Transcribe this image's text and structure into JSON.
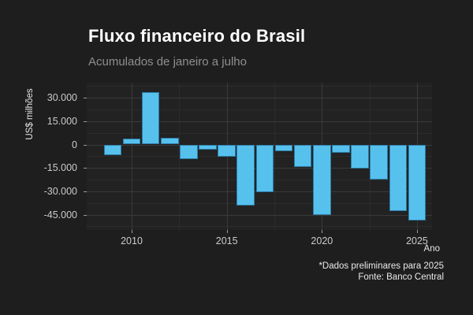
{
  "header": {
    "title": "Fluxo financeiro do Brasil",
    "subtitle": "Acumulados de janeiro a julho"
  },
  "footer": {
    "note": "*Dados preliminares para 2025",
    "source": "Fonte: Banco Central"
  },
  "chart_data": {
    "type": "bar",
    "title": "Fluxo financeiro do Brasil",
    "subtitle": "Acumulados de janeiro a julho",
    "xlabel": "Ano",
    "ylabel": "US$ milhões",
    "categories": [
      2009,
      2010,
      2011,
      2012,
      2013,
      2014,
      2015,
      2016,
      2017,
      2018,
      2019,
      2020,
      2021,
      2022,
      2023,
      2024,
      2025
    ],
    "values": [
      -6800,
      3700,
      33500,
      4400,
      -9200,
      -3300,
      -7800,
      -39000,
      -30300,
      -4300,
      -14500,
      -45300,
      -5500,
      -15300,
      -22300,
      -42800,
      -48900
    ],
    "units": "US$ milhões",
    "ylim": [
      -54000,
      39500
    ],
    "yticks": [
      30000,
      15000,
      0,
      -15000,
      -30000,
      -45000
    ],
    "ytick_labels": [
      "30.000",
      "15.000",
      "0",
      "-15.000",
      "-30.000",
      "-45.000"
    ],
    "xticks": [
      2010,
      2015,
      2020,
      2025
    ],
    "xtick_labels": [
      "2010",
      "2015",
      "2020",
      "2025"
    ],
    "legend": "none",
    "grid": "major and minor gridlines, dark theme",
    "bar_color": "#57c1ee",
    "annotations": [
      "*Dados preliminares para 2025",
      "Fonte: Banco Central"
    ]
  },
  "colors": {
    "background": "#1e1e1e",
    "panel": "#222222",
    "grid_major": "#3a3a3a",
    "grid_minor": "#2c2c2c",
    "bar_fill": "#57c1ee",
    "bar_border": "#2e7ca6",
    "title_text": "#ffffff",
    "subtitle_text": "#8f8f8f",
    "tick_text": "#cbcbcb",
    "axis_title_text": "#e6e6e6",
    "footer_text": "#eaeaea"
  }
}
